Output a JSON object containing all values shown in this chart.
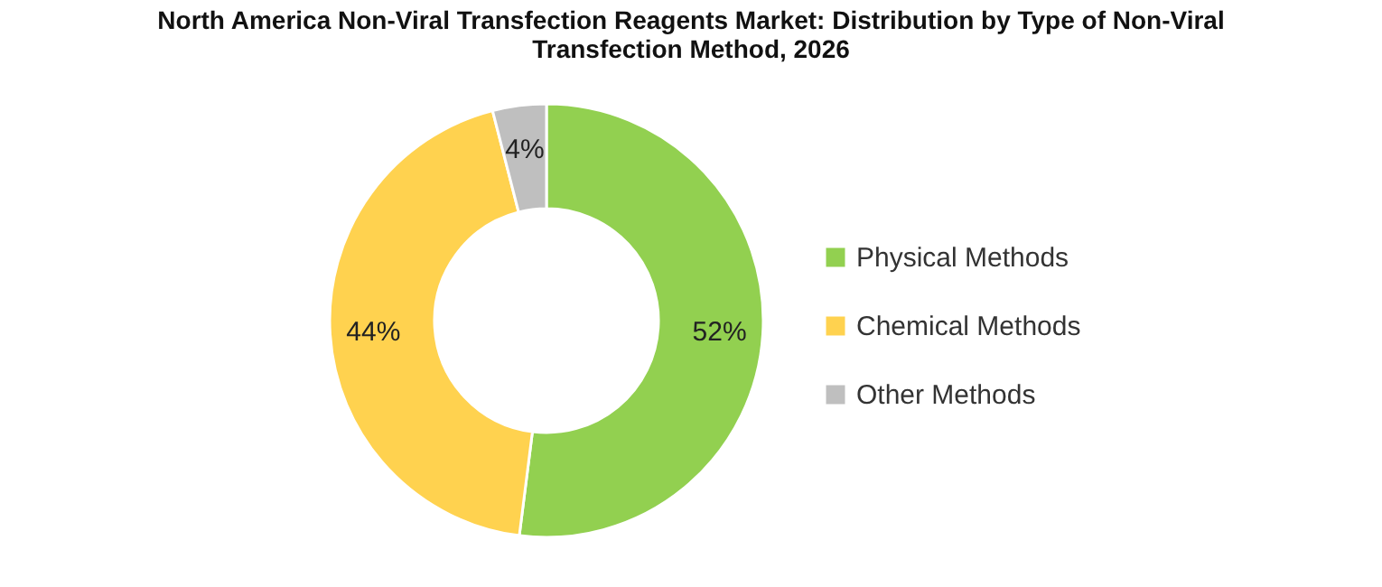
{
  "chart_data": {
    "type": "donut",
    "title": "North America Non-Viral Transfection Reagents Market: Distribution by Type of Non-Viral Transfection Method, 2026",
    "categories": [
      "Physical Methods",
      "Chemical Methods",
      "Other Methods"
    ],
    "values": [
      52,
      44,
      4
    ],
    "value_labels": [
      "52%",
      "44%",
      "4%"
    ],
    "colors": [
      "#92d050",
      "#ffd24f",
      "#bfbfbf"
    ],
    "legend": "right"
  }
}
